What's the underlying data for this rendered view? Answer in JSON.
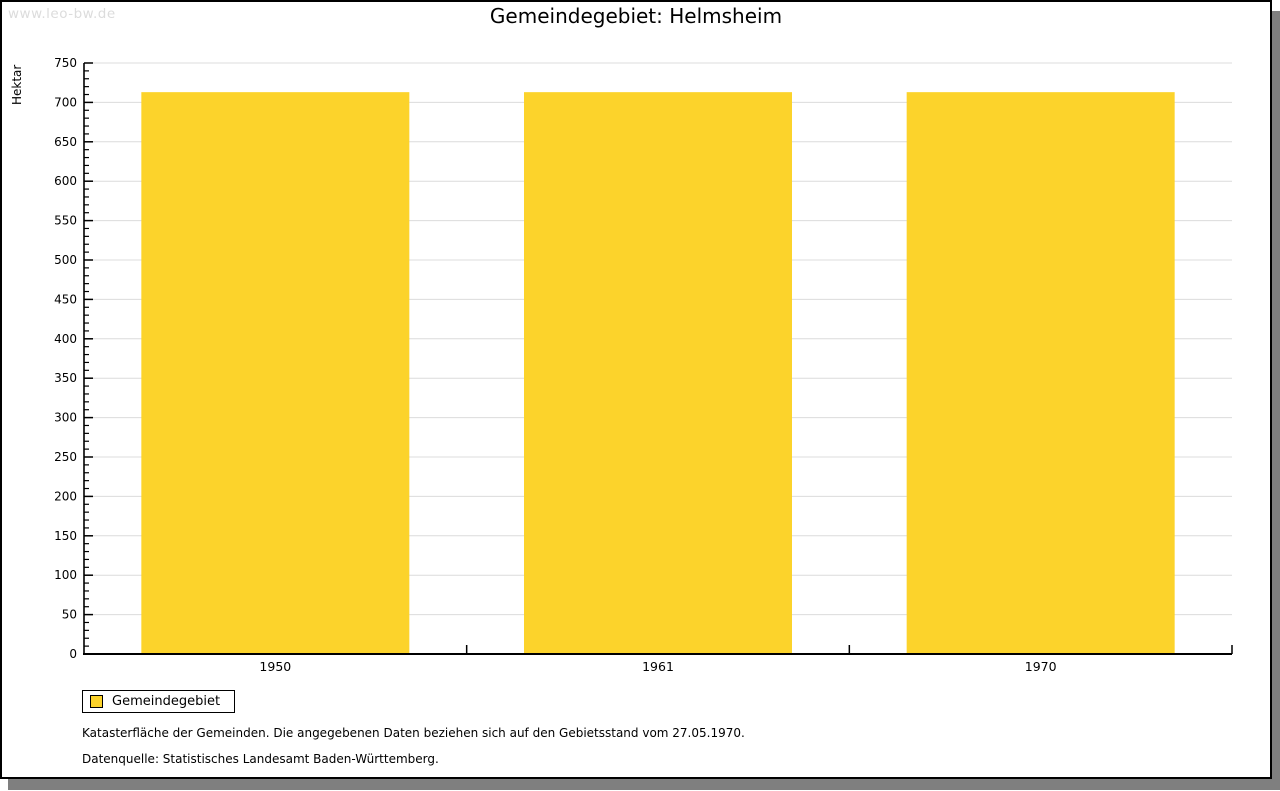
{
  "watermark": "www.leo-bw.de",
  "header": {
    "title": "Gemeindegebiet: Helmsheim"
  },
  "chart_data": {
    "type": "bar",
    "title": "Gemeindegebiet: Helmsheim",
    "categories": [
      "1950",
      "1961",
      "1970"
    ],
    "series": [
      {
        "name": "Gemeindegebiet",
        "values": [
          713,
          713,
          713
        ]
      }
    ],
    "xlabel": "",
    "ylabel": "Hektar",
    "ylim": [
      0,
      750
    ],
    "y_major_step": 50,
    "y_minor_step": 10,
    "grid": true,
    "legend_position": "bottom-left",
    "bar_color": "#fcd32b",
    "grid_color": "#dcdcdc",
    "axis_color": "#000000"
  },
  "legend": {
    "label": "Gemeindegebiet",
    "swatch_color": "#fcd32b"
  },
  "footer": {
    "note": "Katasterfläche der Gemeinden. Die angegebenen Daten beziehen sich auf den Gebietsstand vom 27.05.1970.",
    "source": "Datenquelle: Statistisches Landesamt Baden-Württemberg."
  },
  "colors": {
    "page_border": "#000000",
    "shadow": "#7f7f7f",
    "watermark": "#dcdcdc"
  }
}
